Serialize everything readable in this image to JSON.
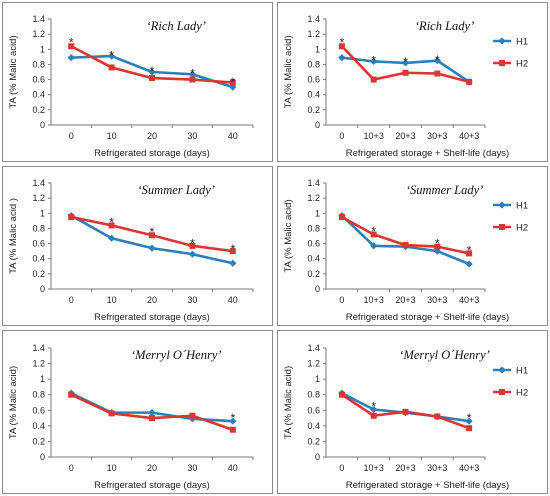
{
  "colors": {
    "H1": "#2e7ebc",
    "H2": "#dc3535"
  },
  "chart_data": [
    {
      "type": "line",
      "title": "‘Rich Lady’",
      "xlabel": "Refrigerated storage (days)",
      "ylabel": "TA (% Malic acid)",
      "categories": [
        "0",
        "10",
        "20",
        "30",
        "40"
      ],
      "yticks": [
        "0",
        "0.2",
        "0.4",
        "0.6",
        "0.8",
        "1",
        "1.2",
        "1.4"
      ],
      "ylim": [
        0,
        1.4
      ],
      "legend": false,
      "series": [
        {
          "name": "H1",
          "values": [
            0.89,
            0.91,
            0.7,
            0.67,
            0.5
          ]
        },
        {
          "name": "H2",
          "values": [
            1.04,
            0.76,
            0.62,
            0.6,
            0.56
          ]
        }
      ],
      "annotations": [
        {
          "text": "*",
          "x": "0",
          "y": 1.13
        },
        {
          "text": "*",
          "x": "10",
          "y": 0.96
        },
        {
          "text": "*",
          "x": "20",
          "y": 0.75
        },
        {
          "text": "*",
          "x": "30",
          "y": 0.72
        },
        {
          "text": "*",
          "x": "40",
          "y": 0.61
        }
      ]
    },
    {
      "type": "line",
      "title": "‘Rich Lady’",
      "xlabel": "Refrigerated storage + Shelf-life (days)",
      "ylabel": "TA (% Malic acid)",
      "categories": [
        "0",
        "10+3",
        "20+3",
        "30+3",
        "40+3"
      ],
      "yticks": [
        "0",
        "0.2",
        "0.4",
        "0.6",
        "0.8",
        "1",
        "1.2",
        "1.4"
      ],
      "ylim": [
        0,
        1.4
      ],
      "legend": true,
      "series": [
        {
          "name": "H1",
          "values": [
            0.89,
            0.84,
            0.82,
            0.85,
            0.57
          ]
        },
        {
          "name": "H2",
          "values": [
            1.04,
            0.6,
            0.69,
            0.68,
            0.57
          ]
        }
      ],
      "annotations": [
        {
          "text": "*",
          "x": "0",
          "y": 1.13
        },
        {
          "text": "*",
          "x": "10+3",
          "y": 0.89
        },
        {
          "text": "*",
          "x": "20+3",
          "y": 0.87
        },
        {
          "text": "*",
          "x": "30+3",
          "y": 0.9
        }
      ]
    },
    {
      "type": "line",
      "title": "‘Summer Lady’",
      "xlabel": "Refrigerated storage (days)",
      "ylabel": "TA (% Malic acid )",
      "categories": [
        "0",
        "10",
        "20",
        "30",
        "40"
      ],
      "yticks": [
        "0",
        "0.2",
        "0.4",
        "0.6",
        "0.8",
        "1",
        "1.2",
        "1.4"
      ],
      "ylim": [
        0,
        1.4
      ],
      "legend": false,
      "series": [
        {
          "name": "H1",
          "values": [
            0.97,
            0.67,
            0.54,
            0.46,
            0.34
          ]
        },
        {
          "name": "H2",
          "values": [
            0.95,
            0.84,
            0.71,
            0.57,
            0.5
          ]
        }
      ],
      "annotations": [
        {
          "text": "*",
          "x": "10",
          "y": 0.92
        },
        {
          "text": "*",
          "x": "20",
          "y": 0.79
        },
        {
          "text": "*",
          "x": "30",
          "y": 0.64
        },
        {
          "text": "*",
          "x": "40",
          "y": 0.57
        }
      ]
    },
    {
      "type": "line",
      "title": "‘Summer Lady’",
      "xlabel": "Refrigerated storage + Shelf-life (days)",
      "ylabel": "TA (% Malic acid)",
      "categories": [
        "0",
        "10+3",
        "20+3",
        "30+3",
        "40+3"
      ],
      "yticks": [
        "0",
        "0.2",
        "0.4",
        "0.6",
        "0.8",
        "1",
        "1.2",
        "1.4"
      ],
      "ylim": [
        0,
        1.4
      ],
      "legend": true,
      "series": [
        {
          "name": "H1",
          "values": [
            0.97,
            0.57,
            0.56,
            0.5,
            0.33
          ]
        },
        {
          "name": "H2",
          "values": [
            0.95,
            0.72,
            0.58,
            0.56,
            0.47
          ]
        }
      ],
      "annotations": [
        {
          "text": "*",
          "x": "10+3",
          "y": 0.8
        },
        {
          "text": "*",
          "x": "30+3",
          "y": 0.64
        },
        {
          "text": "*",
          "x": "40+3",
          "y": 0.55
        }
      ]
    },
    {
      "type": "line",
      "title": "‘Merryl O´Henry’",
      "xlabel": "Refrigerated storage (days)",
      "ylabel": "TA (% Malic acid)",
      "categories": [
        "0",
        "10",
        "20",
        "30",
        "40"
      ],
      "yticks": [
        "0",
        "0.2",
        "0.4",
        "0.6",
        "0.8",
        "1",
        "1.2",
        "1.4"
      ],
      "ylim": [
        0,
        1.4
      ],
      "legend": false,
      "series": [
        {
          "name": "H1",
          "values": [
            0.82,
            0.57,
            0.57,
            0.49,
            0.46
          ]
        },
        {
          "name": "H2",
          "values": [
            0.8,
            0.56,
            0.5,
            0.53,
            0.35
          ]
        }
      ],
      "annotations": [
        {
          "text": "*",
          "x": "40",
          "y": 0.54
        }
      ]
    },
    {
      "type": "line",
      "title": "‘Merryl O´Henry’",
      "xlabel": "Refrigerated storage + Shelf-life (days)",
      "ylabel": "TA (% Malic acid)",
      "categories": [
        "0",
        "10+3",
        "20+3",
        "30+3",
        "40+3"
      ],
      "yticks": [
        "0",
        "0.2",
        "0.4",
        "0.6",
        "0.8",
        "1",
        "1.2",
        "1.4"
      ],
      "ylim": [
        0,
        1.4
      ],
      "legend": true,
      "series": [
        {
          "name": "H1",
          "values": [
            0.82,
            0.61,
            0.57,
            0.52,
            0.46
          ]
        },
        {
          "name": "H2",
          "values": [
            0.8,
            0.53,
            0.58,
            0.52,
            0.37
          ]
        }
      ],
      "annotations": [
        {
          "text": "*",
          "x": "10+3",
          "y": 0.69
        },
        {
          "text": "*",
          "x": "40+3",
          "y": 0.54
        }
      ]
    }
  ]
}
